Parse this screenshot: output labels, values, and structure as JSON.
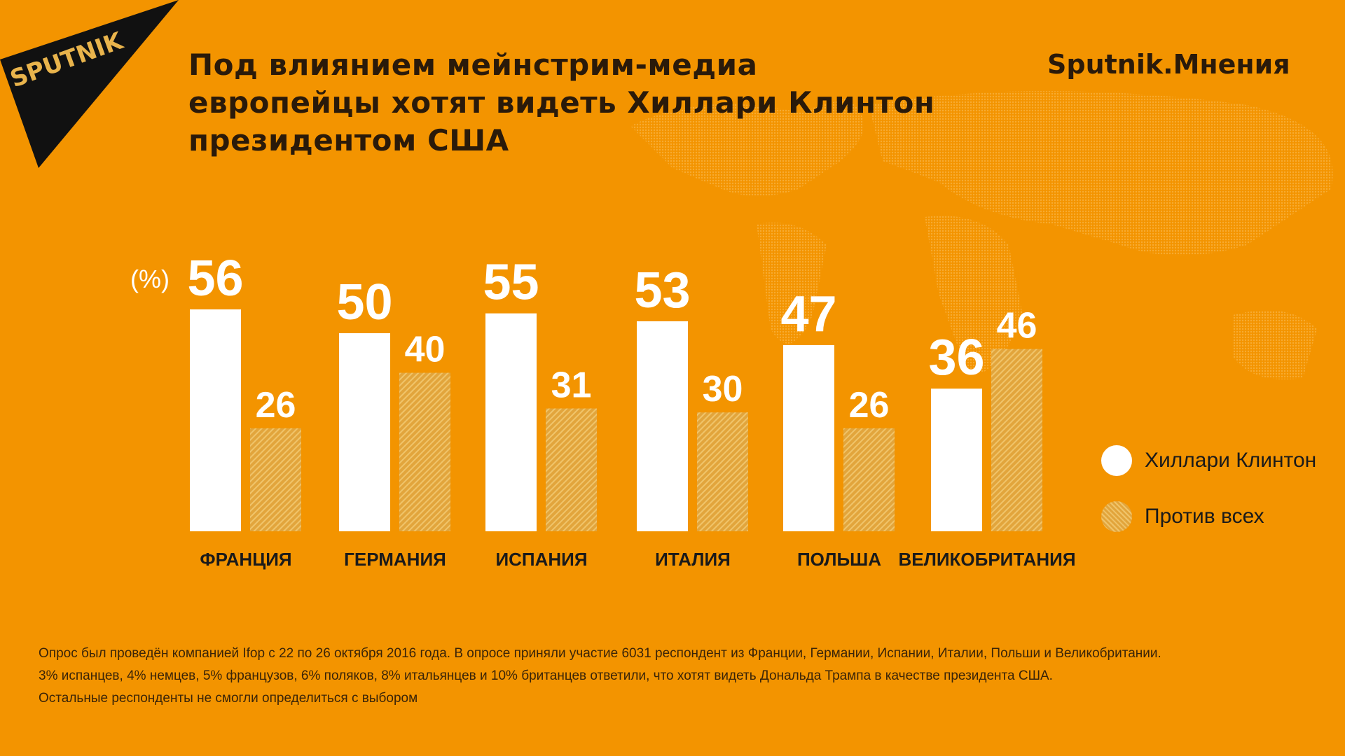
{
  "header": {
    "title_lines": [
      "Под влиянием мейнстрим-медиа",
      "европейцы хотят видеть Хиллари Клинтон",
      "президентом США"
    ],
    "brand": "Sputnik.Мнения",
    "logo_text": "SPUTNIK"
  },
  "colors": {
    "background": "#f39400",
    "clinton": "#ffffff",
    "against": "#e9b44c"
  },
  "chart_data": {
    "type": "bar",
    "title": "Под влиянием мейнстрим-медиа европейцы хотят видеть Хиллари Клинтон президентом США",
    "unit_label": "(%)",
    "categories": [
      "ФРАНЦИЯ",
      "ГЕРМАНИЯ",
      "ИСПАНИЯ",
      "ИТАЛИЯ",
      "ПОЛЬША",
      "ВЕЛИКОБРИТАНИЯ"
    ],
    "series": [
      {
        "name": "Хиллари Клинтон",
        "values": [
          56,
          50,
          55,
          53,
          47,
          36
        ]
      },
      {
        "name": "Против всех",
        "values": [
          26,
          40,
          31,
          30,
          26,
          46
        ]
      }
    ],
    "ylim": [
      0,
      56
    ],
    "legend": "right",
    "grid": false
  },
  "notes": [
    "Опрос был проведён компанией Ifop с 22 по 26 октября 2016 года. В опросе приняли участие 6031  респондент из Франции, Германии, Испании, Италии, Польши и Великобритании.",
    "3% испанцев, 4% немцев, 5% французов, 6% поляков, 8% итальянцев и 10% британцев ответили, что хотят видеть Дональда Трампа в качестве президента США.",
    "Остальные респонденты не смогли определиться с выбором"
  ]
}
